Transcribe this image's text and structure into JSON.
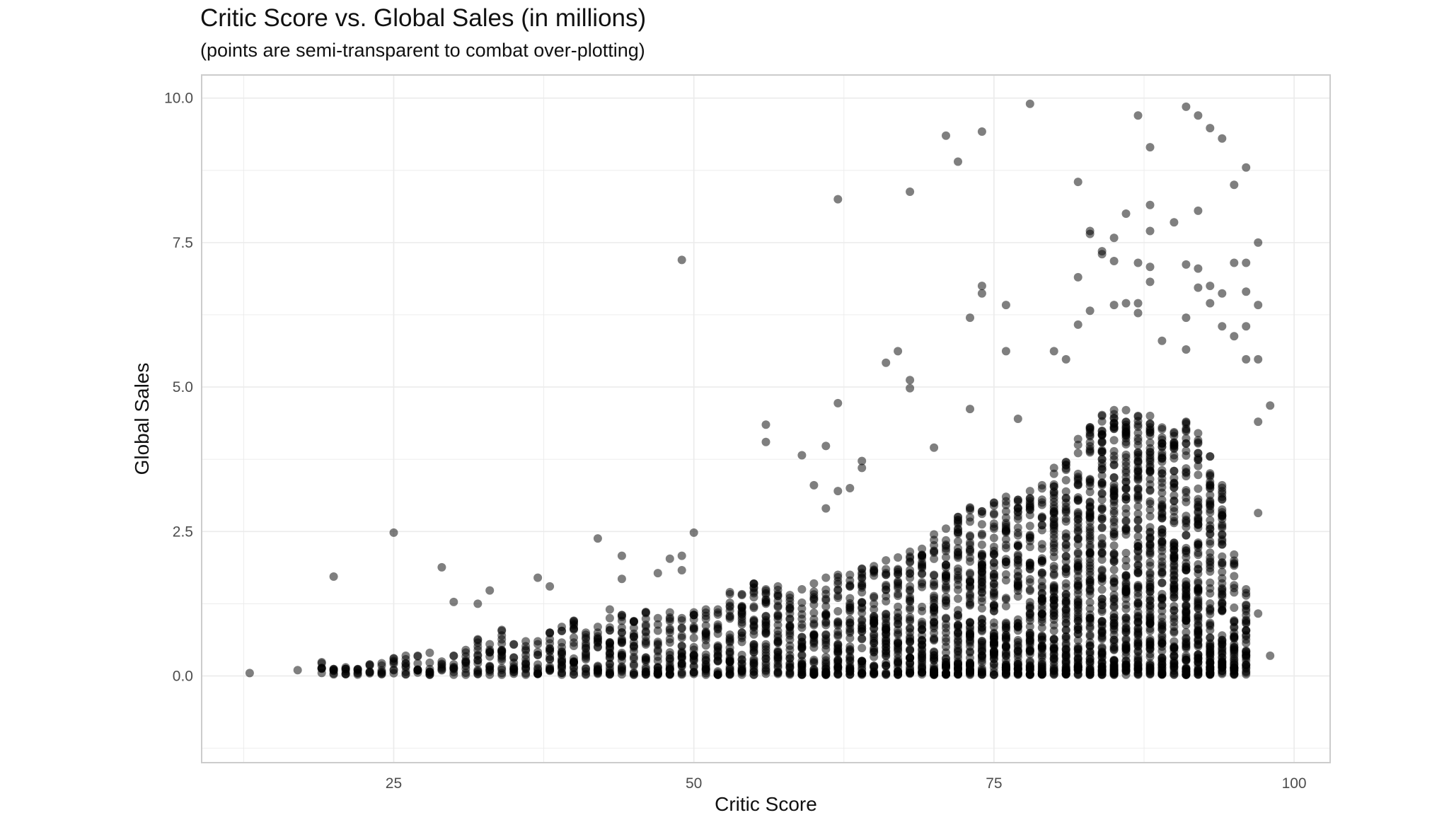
{
  "chart_data": {
    "type": "scatter",
    "title": "Critic Score vs. Global Sales (in millions)",
    "subtitle": "(points are semi-transparent to combat over-plotting)",
    "xlabel": "Critic Score",
    "ylabel": "Global Sales",
    "xlim": [
      9,
      103
    ],
    "ylim": [
      -1.5,
      10.4
    ],
    "x_ticks": [
      25,
      50,
      75,
      100
    ],
    "x_tick_labels": [
      "25",
      "50",
      "75",
      "100"
    ],
    "y_ticks": [
      0,
      2.5,
      5,
      7.5,
      10
    ],
    "y_tick_labels": [
      "0.0",
      "2.5",
      "5.0",
      "7.5",
      "10.0"
    ],
    "grid": true,
    "legend": "none",
    "point_color": "#000000",
    "point_opacity": 0.5,
    "panel_border_color": "#cccccc",
    "grid_color": "#ebebeb",
    "outliers": [
      [
        13,
        0.05
      ],
      [
        17,
        0.1
      ],
      [
        20,
        1.72
      ],
      [
        21,
        0.12
      ],
      [
        25,
        2.48
      ],
      [
        29,
        1.88
      ],
      [
        30,
        1.28
      ],
      [
        32,
        1.25
      ],
      [
        33,
        1.48
      ],
      [
        37,
        1.7
      ],
      [
        38,
        1.55
      ],
      [
        42,
        2.38
      ],
      [
        44,
        2.08
      ],
      [
        44,
        1.68
      ],
      [
        47,
        1.78
      ],
      [
        48,
        2.03
      ],
      [
        49,
        2.08
      ],
      [
        49,
        1.83
      ],
      [
        49,
        7.2
      ],
      [
        50,
        2.48
      ],
      [
        56,
        4.35
      ],
      [
        56,
        4.05
      ],
      [
        59,
        3.82
      ],
      [
        60,
        3.3
      ],
      [
        61,
        3.98
      ],
      [
        61,
        2.9
      ],
      [
        62,
        8.25
      ],
      [
        62,
        4.72
      ],
      [
        62,
        3.2
      ],
      [
        63,
        3.25
      ],
      [
        64,
        3.72
      ],
      [
        64,
        3.6
      ],
      [
        66,
        5.42
      ],
      [
        67,
        5.62
      ],
      [
        68,
        5.12
      ],
      [
        68,
        4.98
      ],
      [
        68,
        8.38
      ],
      [
        70,
        3.95
      ],
      [
        71,
        9.35
      ],
      [
        72,
        8.9
      ],
      [
        73,
        6.2
      ],
      [
        73,
        4.62
      ],
      [
        74,
        9.42
      ],
      [
        74,
        6.75
      ],
      [
        74,
        6.62
      ],
      [
        76,
        6.42
      ],
      [
        76,
        5.62
      ],
      [
        77,
        4.45
      ],
      [
        78,
        9.9
      ],
      [
        80,
        5.62
      ],
      [
        81,
        5.48
      ],
      [
        82,
        8.55
      ],
      [
        82,
        6.9
      ],
      [
        82,
        6.08
      ],
      [
        83,
        7.7
      ],
      [
        83,
        7.65
      ],
      [
        83,
        6.32
      ],
      [
        84,
        7.35
      ],
      [
        84,
        7.3
      ],
      [
        85,
        7.58
      ],
      [
        85,
        7.18
      ],
      [
        85,
        6.42
      ],
      [
        86,
        8.0
      ],
      [
        86,
        6.45
      ],
      [
        86,
        4.6
      ],
      [
        87,
        9.7
      ],
      [
        87,
        7.15
      ],
      [
        87,
        6.45
      ],
      [
        87,
        6.28
      ],
      [
        88,
        9.15
      ],
      [
        88,
        8.15
      ],
      [
        88,
        7.7
      ],
      [
        88,
        7.08
      ],
      [
        88,
        6.82
      ],
      [
        89,
        5.8
      ],
      [
        90,
        7.85
      ],
      [
        91,
        9.85
      ],
      [
        91,
        7.12
      ],
      [
        91,
        6.2
      ],
      [
        91,
        5.65
      ],
      [
        92,
        9.7
      ],
      [
        92,
        8.05
      ],
      [
        92,
        7.05
      ],
      [
        92,
        6.72
      ],
      [
        93,
        9.48
      ],
      [
        93,
        6.75
      ],
      [
        93,
        6.45
      ],
      [
        94,
        9.3
      ],
      [
        94,
        6.62
      ],
      [
        94,
        6.05
      ],
      [
        95,
        8.5
      ],
      [
        95,
        7.15
      ],
      [
        95,
        5.88
      ],
      [
        96,
        8.8
      ],
      [
        96,
        7.15
      ],
      [
        96,
        6.65
      ],
      [
        96,
        6.05
      ],
      [
        96,
        5.48
      ],
      [
        97,
        7.5
      ],
      [
        97,
        6.42
      ],
      [
        97,
        5.48
      ],
      [
        97,
        4.4
      ],
      [
        97,
        2.82
      ],
      [
        97,
        1.08
      ],
      [
        98,
        4.68
      ],
      [
        98,
        0.35
      ],
      [
        95,
        0.75
      ],
      [
        96,
        0.42
      ],
      [
        96,
        0.15
      ]
    ],
    "dense_columns": [
      [
        19,
        0.22
      ],
      [
        20,
        0.12
      ],
      [
        21,
        0.15
      ],
      [
        22,
        0.12
      ],
      [
        23,
        0.2
      ],
      [
        24,
        0.22
      ],
      [
        25,
        0.3
      ],
      [
        26,
        0.35
      ],
      [
        27,
        0.35
      ],
      [
        28,
        0.4
      ],
      [
        29,
        0.25
      ],
      [
        30,
        0.35
      ],
      [
        31,
        0.45
      ],
      [
        32,
        0.62
      ],
      [
        33,
        0.55
      ],
      [
        34,
        0.78
      ],
      [
        35,
        0.55
      ],
      [
        36,
        0.6
      ],
      [
        37,
        0.6
      ],
      [
        38,
        0.75
      ],
      [
        39,
        0.85
      ],
      [
        40,
        0.95
      ],
      [
        41,
        0.75
      ],
      [
        42,
        0.85
      ],
      [
        43,
        1.15
      ],
      [
        44,
        1.05
      ],
      [
        45,
        0.95
      ],
      [
        46,
        1.1
      ],
      [
        47,
        1.0
      ],
      [
        48,
        1.1
      ],
      [
        49,
        1.0
      ],
      [
        50,
        1.1
      ],
      [
        51,
        1.15
      ],
      [
        52,
        1.15
      ],
      [
        53,
        1.45
      ],
      [
        54,
        1.4
      ],
      [
        55,
        1.6
      ],
      [
        56,
        1.5
      ],
      [
        57,
        1.55
      ],
      [
        58,
        1.4
      ],
      [
        59,
        1.5
      ],
      [
        60,
        1.6
      ],
      [
        61,
        1.7
      ],
      [
        62,
        1.75
      ],
      [
        63,
        1.75
      ],
      [
        64,
        1.85
      ],
      [
        65,
        1.9
      ],
      [
        66,
        2.0
      ],
      [
        67,
        2.05
      ],
      [
        68,
        2.15
      ],
      [
        69,
        2.2
      ],
      [
        70,
        2.45
      ],
      [
        71,
        2.55
      ],
      [
        72,
        2.75
      ],
      [
        73,
        2.9
      ],
      [
        74,
        2.85
      ],
      [
        75,
        3.0
      ],
      [
        76,
        3.1
      ],
      [
        77,
        3.05
      ],
      [
        78,
        3.2
      ],
      [
        79,
        3.3
      ],
      [
        80,
        3.6
      ],
      [
        81,
        3.7
      ],
      [
        82,
        4.1
      ],
      [
        83,
        4.3
      ],
      [
        84,
        4.5
      ],
      [
        85,
        4.6
      ],
      [
        86,
        4.4
      ],
      [
        87,
        4.5
      ],
      [
        88,
        4.5
      ],
      [
        89,
        4.3
      ],
      [
        90,
        4.2
      ],
      [
        91,
        4.4
      ],
      [
        92,
        4.2
      ],
      [
        93,
        3.8
      ],
      [
        94,
        3.3
      ],
      [
        95,
        2.1
      ],
      [
        96,
        1.5
      ]
    ]
  }
}
